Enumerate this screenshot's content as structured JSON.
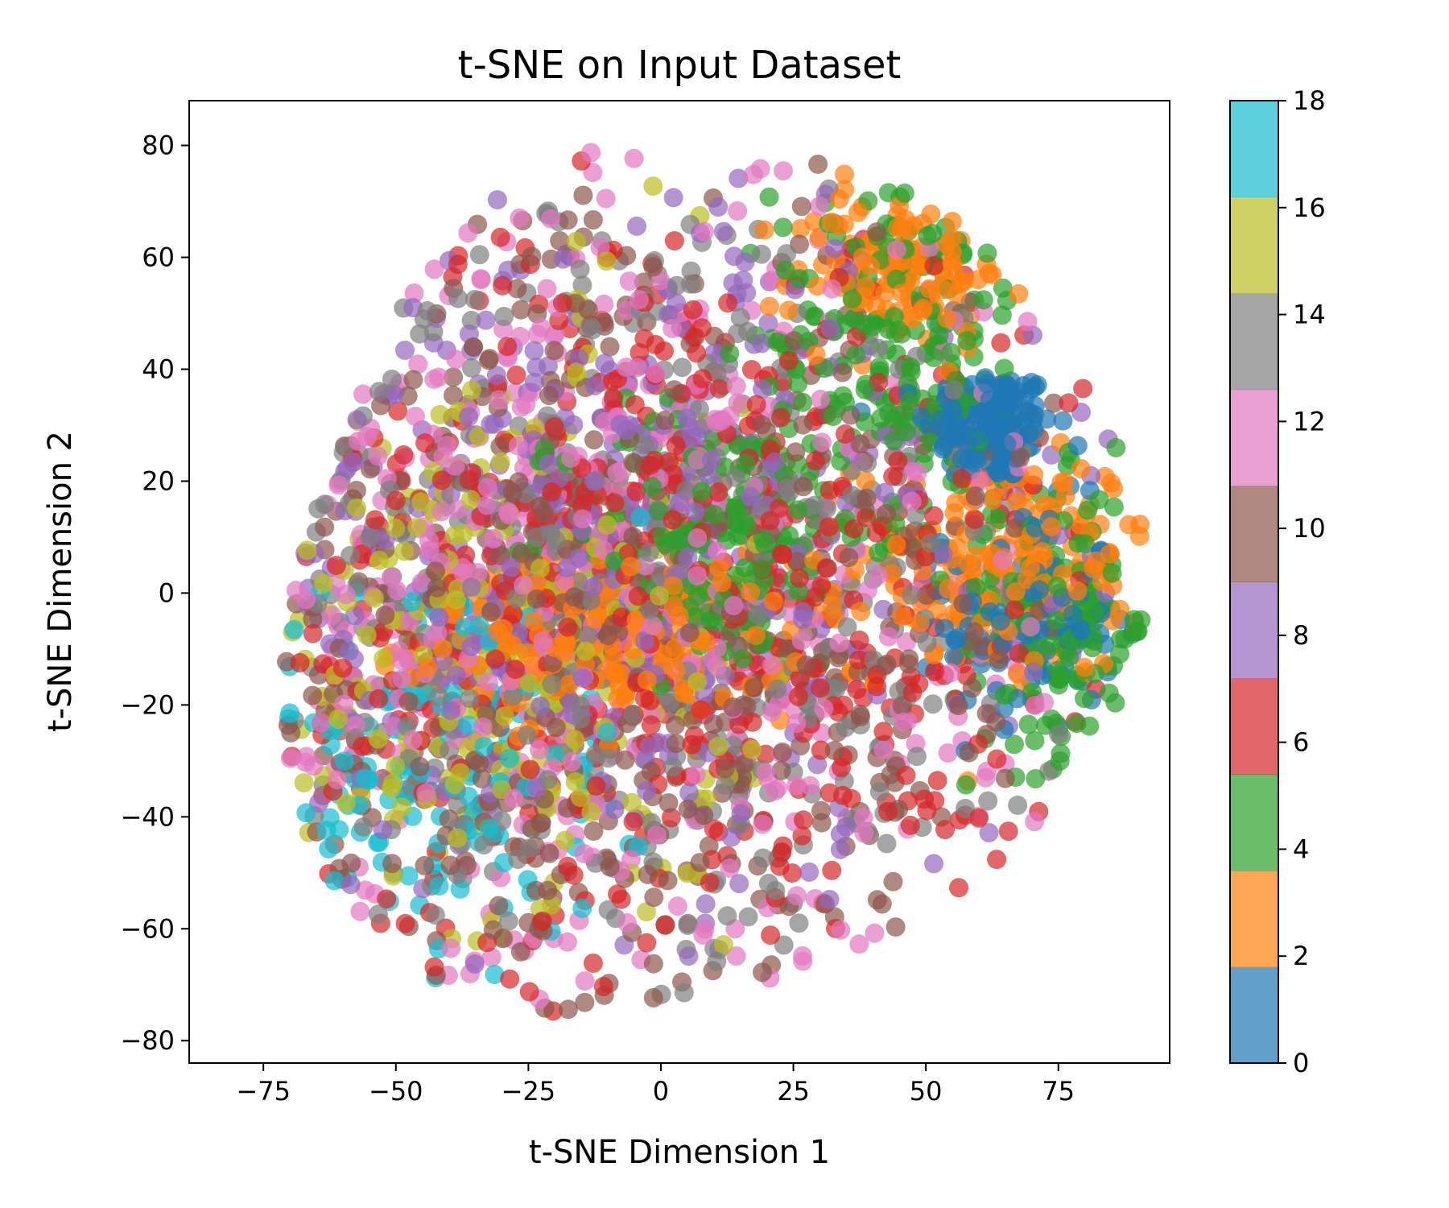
{
  "chart_data": {
    "type": "scatter",
    "title": "t-SNE on Input Dataset",
    "xlabel": "t-SNE Dimension 1",
    "ylabel": "t-SNE Dimension 2",
    "xlim": [
      -89,
      96
    ],
    "ylim": [
      -84,
      88
    ],
    "xticks": [
      -75,
      -50,
      -25,
      0,
      25,
      50,
      75
    ],
    "yticks": [
      -80,
      -60,
      -40,
      -20,
      0,
      20,
      40,
      60,
      80
    ],
    "grid": false,
    "colorbar": {
      "label": "",
      "range": [
        0,
        18
      ],
      "ticks": [
        0,
        2,
        4,
        6,
        8,
        10,
        12,
        14,
        16,
        18
      ],
      "colormap": "tab10",
      "bin_colors": [
        "#1f77b4",
        "#ff7f0e",
        "#2ca02c",
        "#d62728",
        "#9467bd",
        "#8c564b",
        "#e377c2",
        "#7f7f7f",
        "#bcbd22",
        "#17becf"
      ]
    },
    "marker_alpha": 0.7,
    "cluster_regions": [
      {
        "label": 0,
        "color": "#1f77b4",
        "center": [
          62,
          30
        ],
        "spread": [
          6,
          5
        ],
        "approx_points": 180
      },
      {
        "label": 0,
        "color": "#1f77b4",
        "center": [
          70,
          -5
        ],
        "spread": [
          8,
          10
        ],
        "approx_points": 120
      },
      {
        "label": 2,
        "color": "#ff7f0e",
        "center": [
          -10,
          -8
        ],
        "spread": [
          18,
          7
        ],
        "approx_points": 260
      },
      {
        "label": 2,
        "color": "#ff7f0e",
        "center": [
          65,
          5
        ],
        "spread": [
          14,
          10
        ],
        "approx_points": 200
      },
      {
        "label": 2,
        "color": "#ff7f0e",
        "center": [
          45,
          58
        ],
        "spread": [
          10,
          7
        ],
        "approx_points": 120
      },
      {
        "label": 4,
        "color": "#2ca02c",
        "center": [
          10,
          10
        ],
        "spread": [
          14,
          12
        ],
        "approx_points": 180
      },
      {
        "label": 4,
        "color": "#2ca02c",
        "center": [
          45,
          45
        ],
        "spread": [
          12,
          16
        ],
        "approx_points": 200
      },
      {
        "label": 4,
        "color": "#2ca02c",
        "center": [
          75,
          -5
        ],
        "spread": [
          10,
          12
        ],
        "approx_points": 150
      },
      {
        "label": 6,
        "color": "#d62728",
        "center": [
          0,
          0
        ],
        "spread": [
          40,
          35
        ],
        "approx_points": 600
      },
      {
        "label": 8,
        "color": "#9467bd",
        "center": [
          -10,
          10
        ],
        "spread": [
          40,
          30
        ],
        "approx_points": 420
      },
      {
        "label": 10,
        "color": "#8c564b",
        "center": [
          -10,
          -10
        ],
        "spread": [
          45,
          38
        ],
        "approx_points": 560
      },
      {
        "label": 12,
        "color": "#e377c2",
        "center": [
          -15,
          0
        ],
        "spread": [
          42,
          36
        ],
        "approx_points": 560
      },
      {
        "label": 14,
        "color": "#7f7f7f",
        "center": [
          -5,
          0
        ],
        "spread": [
          42,
          36
        ],
        "approx_points": 460
      },
      {
        "label": 16,
        "color": "#bcbd22",
        "center": [
          -35,
          -10
        ],
        "spread": [
          25,
          30
        ],
        "approx_points": 260
      },
      {
        "label": 18,
        "color": "#17becf",
        "center": [
          -40,
          -30
        ],
        "spread": [
          18,
          20
        ],
        "approx_points": 150
      }
    ]
  }
}
